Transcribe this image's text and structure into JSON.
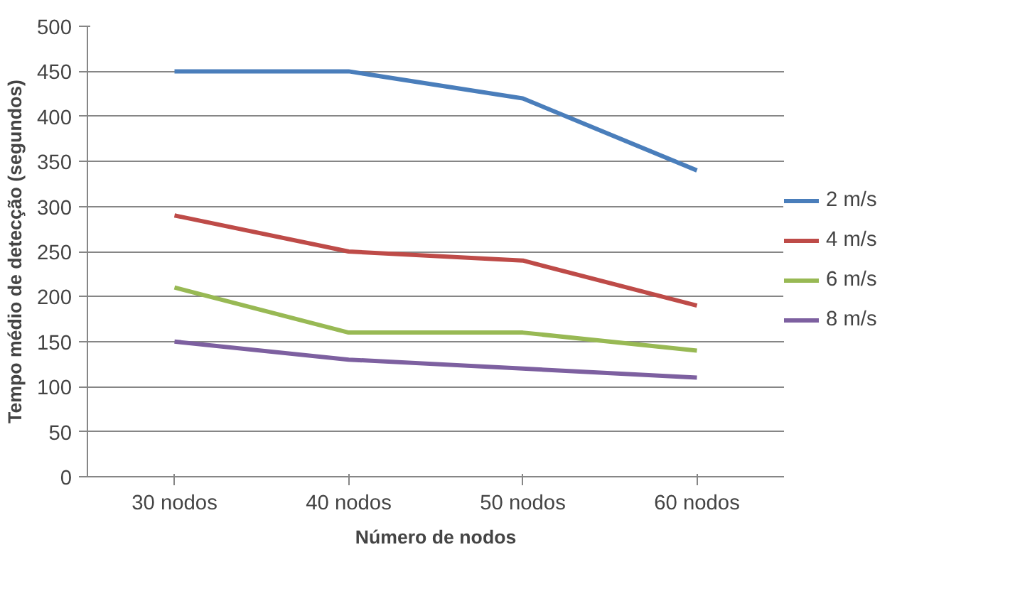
{
  "chart_data": {
    "type": "line",
    "xlabel": "Número de nodos",
    "ylabel": "Tempo médio de detecção (segundos)",
    "categories": [
      "30 nodos",
      "40 nodos",
      "50 nodos",
      "60 nodos"
    ],
    "series": [
      {
        "name": "2 m/s",
        "color": "#4a7ebb",
        "values": [
          450,
          450,
          420,
          340
        ]
      },
      {
        "name": "4 m/s",
        "color": "#be4b48",
        "values": [
          290,
          250,
          240,
          190
        ]
      },
      {
        "name": "6 m/s",
        "color": "#98b954",
        "values": [
          210,
          160,
          160,
          140
        ]
      },
      {
        "name": "8 m/s",
        "color": "#7d60a0",
        "values": [
          150,
          130,
          120,
          110
        ]
      }
    ],
    "ylim": [
      0,
      500
    ],
    "yticks": [
      0,
      50,
      100,
      150,
      200,
      250,
      300,
      350,
      400,
      450,
      500
    ],
    "grid": "y",
    "legend": "right",
    "marker": "none",
    "line_style": "solid"
  }
}
